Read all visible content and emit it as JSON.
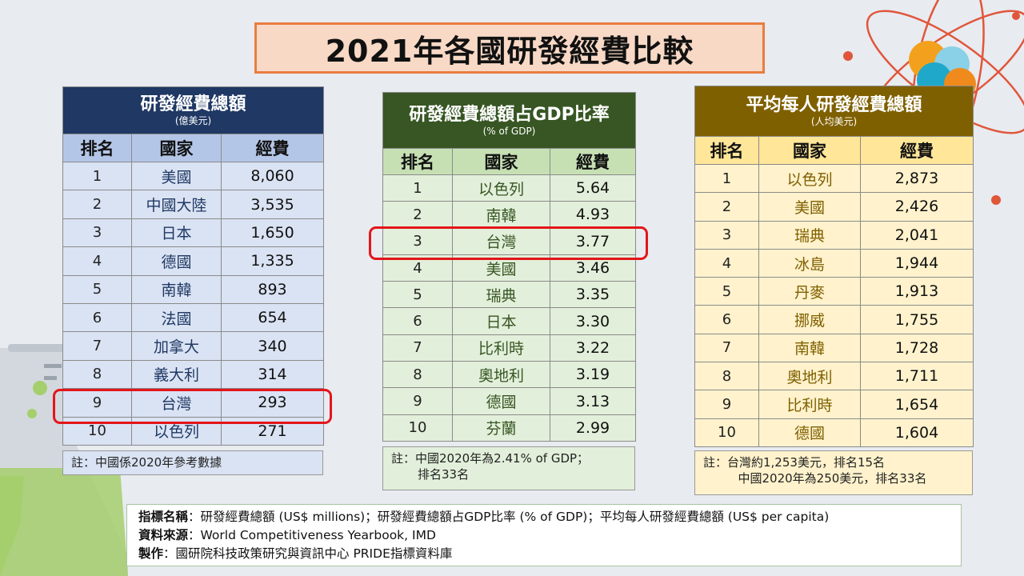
{
  "title": "2021年各國研發經費比較",
  "col_headers": {
    "rank": "排名",
    "country": "國家",
    "value": "經費"
  },
  "table1": {
    "title": "研發經費總額",
    "unit": "(億美元)",
    "rows": [
      {
        "rank": "1",
        "country": "美國",
        "value": "8,060"
      },
      {
        "rank": "2",
        "country": "中國大陸",
        "value": "3,535"
      },
      {
        "rank": "3",
        "country": "日本",
        "value": "1,650"
      },
      {
        "rank": "4",
        "country": "德國",
        "value": "1,335"
      },
      {
        "rank": "5",
        "country": "南韓",
        "value": "893"
      },
      {
        "rank": "6",
        "country": "法國",
        "value": "654"
      },
      {
        "rank": "7",
        "country": "加拿大",
        "value": "340"
      },
      {
        "rank": "8",
        "country": "義大利",
        "value": "314"
      },
      {
        "rank": "9",
        "country": "台灣",
        "value": "293"
      },
      {
        "rank": "10",
        "country": "以色列",
        "value": "271"
      }
    ],
    "note": "註：中國係2020年參考數據"
  },
  "table2": {
    "title": "研發經費總額占GDP比率",
    "unit": "(% of GDP)",
    "rows": [
      {
        "rank": "1",
        "country": "以色列",
        "value": "5.64"
      },
      {
        "rank": "2",
        "country": "南韓",
        "value": "4.93"
      },
      {
        "rank": "3",
        "country": "台灣",
        "value": "3.77"
      },
      {
        "rank": "4",
        "country": "美國",
        "value": "3.46"
      },
      {
        "rank": "5",
        "country": "瑞典",
        "value": "3.35"
      },
      {
        "rank": "6",
        "country": "日本",
        "value": "3.30"
      },
      {
        "rank": "7",
        "country": "比利時",
        "value": "3.22"
      },
      {
        "rank": "8",
        "country": "奧地利",
        "value": "3.19"
      },
      {
        "rank": "9",
        "country": "德國",
        "value": "3.13"
      },
      {
        "rank": "10",
        "country": "芬蘭",
        "value": "2.99"
      }
    ],
    "note_line1": "註：中國2020年為2.41% of GDP；",
    "note_line2": "排名33名"
  },
  "table3": {
    "title": "平均每人研發經費總額",
    "unit": "(人均美元)",
    "rows": [
      {
        "rank": "1",
        "country": "以色列",
        "value": "2,873"
      },
      {
        "rank": "2",
        "country": "美國",
        "value": "2,426"
      },
      {
        "rank": "3",
        "country": "瑞典",
        "value": "2,041"
      },
      {
        "rank": "4",
        "country": "冰島",
        "value": "1,944"
      },
      {
        "rank": "5",
        "country": "丹麥",
        "value": "1,913"
      },
      {
        "rank": "6",
        "country": "挪威",
        "value": "1,755"
      },
      {
        "rank": "7",
        "country": "南韓",
        "value": "1,728"
      },
      {
        "rank": "8",
        "country": "奧地利",
        "value": "1,711"
      },
      {
        "rank": "9",
        "country": "比利時",
        "value": "1,654"
      },
      {
        "rank": "10",
        "country": "德國",
        "value": "1,604"
      }
    ],
    "note_line1": "註：台灣約1,253美元，排名15名",
    "note_line2": "中國2020年為250美元，排名33名"
  },
  "source": {
    "indicator_label": "指標名稱",
    "indicator_text": "：研發經費總額 (US$ millions)；研發經費總額占GDP比率 (% of GDP)；平均每人研發經費總額 (US$ per capita)",
    "source_label": "資料來源",
    "source_text": "：World Competitiveness Yearbook, IMD",
    "maker_label": "製作",
    "maker_text": "：國研院科技政策研究與資訊中心 PRIDE指標資料庫"
  },
  "colors": {
    "table1_header": "#1f3864",
    "table2_header": "#375623",
    "table3_header": "#7f6000",
    "highlight": "#e3151a",
    "title_border": "#e87d3e"
  },
  "decor_icons": [
    "atom-icon",
    "flask-icon"
  ]
}
